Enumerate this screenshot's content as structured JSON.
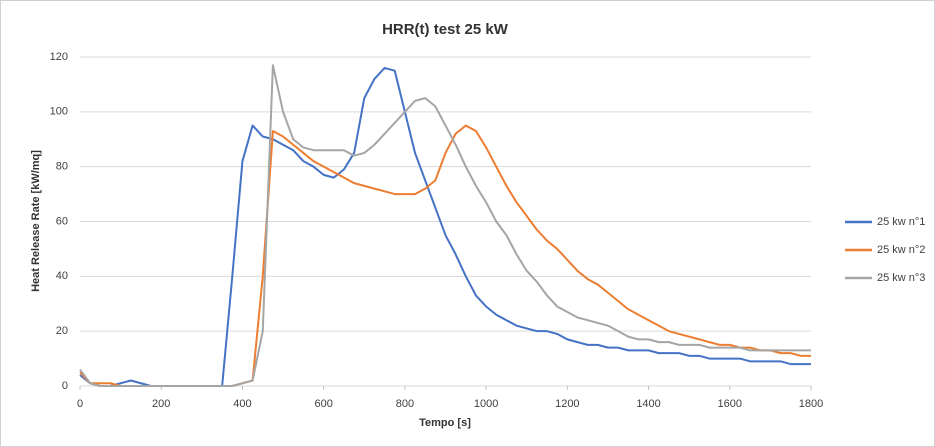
{
  "chart_data": {
    "type": "line",
    "title": "HRR(t) test 25 kW",
    "x_label": "Tempo [s]",
    "y_label": "Heat Release Rate [kW/mq]",
    "x": [
      0,
      25,
      50,
      75,
      100,
      125,
      150,
      175,
      200,
      225,
      250,
      275,
      300,
      325,
      350,
      375,
      400,
      425,
      450,
      475,
      500,
      525,
      550,
      575,
      600,
      625,
      650,
      675,
      700,
      725,
      750,
      775,
      800,
      825,
      850,
      875,
      900,
      925,
      950,
      975,
      1000,
      1025,
      1050,
      1075,
      1100,
      1125,
      1150,
      1175,
      1200,
      1225,
      1250,
      1275,
      1300,
      1325,
      1350,
      1375,
      1400,
      1425,
      1450,
      1475,
      1500,
      1525,
      1550,
      1575,
      1600,
      1625,
      1650,
      1675,
      1700,
      1725,
      1750,
      1775,
      1800
    ],
    "series": [
      {
        "name": "25 kw n°1",
        "color": "#4472c4",
        "values": [
          4,
          1,
          0,
          0,
          1,
          2,
          1,
          0,
          0,
          0,
          0,
          0,
          0,
          0,
          0,
          40,
          82,
          95,
          91,
          90,
          88,
          86,
          82,
          80,
          77,
          76,
          79,
          85,
          105,
          112,
          116,
          115,
          100,
          85,
          75,
          65,
          55,
          48,
          40,
          33,
          29,
          26,
          24,
          22,
          21,
          20,
          20,
          19,
          17,
          16,
          15,
          15,
          14,
          14,
          13,
          13,
          13,
          12,
          12,
          12,
          11,
          11,
          10,
          10,
          10,
          10,
          9,
          9,
          9,
          9,
          8,
          8,
          8
        ]
      },
      {
        "name": "25 kw n°2",
        "color": "#ed7d31",
        "values": [
          5,
          1,
          1,
          1,
          0,
          0,
          0,
          0,
          0,
          0,
          0,
          0,
          0,
          0,
          0,
          0,
          1,
          2,
          40,
          93,
          91,
          88,
          85,
          82,
          80,
          78,
          76,
          74,
          73,
          72,
          71,
          70,
          70,
          70,
          72,
          75,
          85,
          92,
          95,
          93,
          87,
          80,
          73,
          67,
          62,
          57,
          53,
          50,
          46,
          42,
          39,
          37,
          34,
          31,
          28,
          26,
          24,
          22,
          20,
          19,
          18,
          17,
          16,
          15,
          15,
          14,
          14,
          13,
          13,
          12,
          12,
          11,
          11
        ]
      },
      {
        "name": "25 kw n°3",
        "color": "#a5a5a5",
        "values": [
          6,
          1,
          0,
          0,
          0,
          0,
          0,
          0,
          0,
          0,
          0,
          0,
          0,
          0,
          0,
          0,
          1,
          2,
          20,
          117,
          100,
          90,
          87,
          86,
          86,
          86,
          86,
          84,
          85,
          88,
          92,
          96,
          100,
          104,
          105,
          102,
          95,
          88,
          80,
          73,
          67,
          60,
          55,
          48,
          42,
          38,
          33,
          29,
          27,
          25,
          24,
          23,
          22,
          20,
          18,
          17,
          17,
          16,
          16,
          15,
          15,
          15,
          14,
          14,
          14,
          14,
          13,
          13,
          13,
          13,
          13,
          13,
          13
        ]
      }
    ],
    "xlim": [
      0,
      1800
    ],
    "xticks": [
      0,
      200,
      400,
      600,
      800,
      1000,
      1200,
      1400,
      1600,
      1800
    ],
    "ylim": [
      0,
      120
    ],
    "yticks": [
      0,
      20,
      40,
      60,
      80,
      100,
      120
    ],
    "grid": true,
    "legend": "right"
  }
}
